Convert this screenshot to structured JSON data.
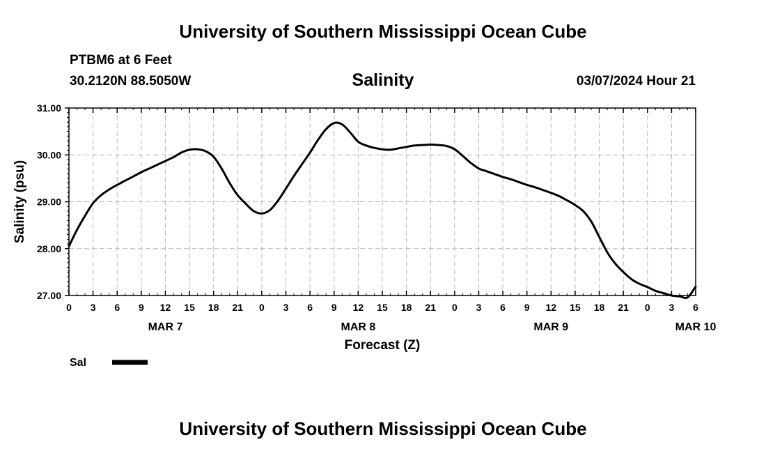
{
  "chart_data": {
    "type": "line",
    "title": "University of Southern Mississippi Ocean Cube",
    "footer_title": "University of Southern Mississippi Ocean Cube",
    "station": "PTBM6 at 6 Feet",
    "location": "30.2120N  88.5050W",
    "subtitle": "Salinity",
    "datetime": "03/07/2024 Hour 21",
    "xlabel": "Forecast (Z)",
    "ylabel": "Salinity (psu)",
    "ylim": [
      27.0,
      31.0
    ],
    "xlim": [
      0,
      78
    ],
    "y_ticks": [
      "27.00",
      "28.00",
      "29.00",
      "30.00",
      "31.00"
    ],
    "x_tick_labels": [
      "0",
      "3",
      "6",
      "9",
      "12",
      "15",
      "18",
      "21",
      "0",
      "3",
      "6",
      "9",
      "12",
      "15",
      "18",
      "21",
      "0",
      "3",
      "6",
      "9",
      "12",
      "15",
      "18",
      "21",
      "0",
      "3",
      "6"
    ],
    "day_labels": [
      {
        "label": "MAR 7",
        "hour": 12
      },
      {
        "label": "MAR 8",
        "hour": 36
      },
      {
        "label": "MAR 9",
        "hour": 60
      },
      {
        "label": "MAR 10",
        "hour": 78
      }
    ],
    "grid": true,
    "legend": [
      {
        "name": "Sal",
        "color": "#000000"
      }
    ],
    "series": [
      {
        "name": "Sal",
        "x": [
          0,
          1,
          2,
          3,
          4,
          5,
          6,
          7,
          8,
          9,
          10,
          11,
          12,
          13,
          14,
          15,
          16,
          17,
          18,
          19,
          20,
          21,
          22,
          23,
          24,
          25,
          26,
          27,
          28,
          29,
          30,
          31,
          32,
          33,
          34,
          35,
          36,
          37,
          38,
          39,
          40,
          41,
          42,
          43,
          44,
          45,
          46,
          47,
          48,
          49,
          50,
          51,
          52,
          53,
          54,
          55,
          56,
          57,
          58,
          59,
          60,
          61,
          62,
          63,
          64,
          65,
          66,
          67,
          68,
          69,
          70,
          71,
          72,
          73,
          74,
          75,
          76,
          77,
          78
        ],
        "values": [
          28.05,
          28.4,
          28.7,
          28.97,
          29.14,
          29.26,
          29.36,
          29.45,
          29.54,
          29.63,
          29.71,
          29.79,
          29.87,
          29.95,
          30.05,
          30.11,
          30.12,
          30.08,
          29.96,
          29.71,
          29.4,
          29.14,
          28.96,
          28.8,
          28.75,
          28.82,
          29.02,
          29.28,
          29.55,
          29.8,
          30.05,
          30.32,
          30.55,
          30.68,
          30.65,
          30.48,
          30.28,
          30.2,
          30.15,
          30.12,
          30.11,
          30.14,
          30.17,
          30.2,
          30.21,
          30.22,
          30.21,
          30.19,
          30.12,
          29.98,
          29.83,
          29.71,
          29.65,
          29.59,
          29.53,
          29.48,
          29.42,
          29.36,
          29.31,
          29.25,
          29.19,
          29.12,
          29.03,
          28.93,
          28.8,
          28.58,
          28.25,
          27.92,
          27.68,
          27.5,
          27.35,
          27.25,
          27.18,
          27.1,
          27.05,
          27.0,
          26.98,
          26.96,
          27.19
        ]
      }
    ]
  }
}
